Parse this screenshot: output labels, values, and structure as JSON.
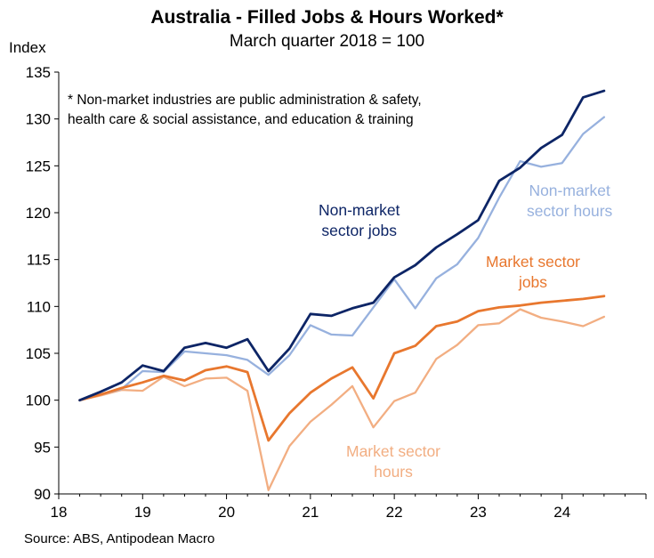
{
  "chart_data": {
    "type": "line",
    "title": "Australia - Filled Jobs & Hours Worked*",
    "subtitle": "March quarter 2018 = 100",
    "ylabel": "Index",
    "ylim": [
      90,
      135
    ],
    "yticks": [
      90,
      95,
      100,
      105,
      110,
      115,
      120,
      125,
      130,
      135
    ],
    "xlim": [
      18,
      25
    ],
    "xticks": [
      18,
      19,
      20,
      21,
      22,
      23,
      24
    ],
    "xtick_labels": [
      "18",
      "19",
      "20",
      "21",
      "22",
      "23",
      "24"
    ],
    "x": [
      18.25,
      18.5,
      18.75,
      19.0,
      19.25,
      19.5,
      19.75,
      20.0,
      20.25,
      20.5,
      20.75,
      21.0,
      21.25,
      21.5,
      21.75,
      22.0,
      22.25,
      22.5,
      22.75,
      23.0,
      23.25,
      23.5,
      23.75,
      24.0,
      24.25,
      24.5
    ],
    "series": [
      {
        "name": "Non-market sector jobs",
        "color": "#0d2566",
        "values": [
          100.0,
          100.9,
          101.9,
          103.7,
          103.1,
          105.6,
          106.1,
          105.6,
          106.5,
          103.1,
          105.5,
          109.2,
          109.0,
          109.8,
          110.4,
          113.1,
          114.4,
          116.3,
          117.7,
          119.2,
          123.4,
          124.8,
          126.9,
          128.3,
          132.3,
          133.0
        ]
      },
      {
        "name": "Non-market sector hours",
        "color": "#97b1de",
        "values": [
          100.0,
          100.6,
          101.2,
          103.1,
          103.0,
          105.2,
          105.0,
          104.8,
          104.3,
          102.7,
          104.8,
          108.0,
          107.0,
          106.9,
          109.9,
          112.9,
          109.8,
          113.0,
          114.5,
          117.3,
          121.6,
          125.5,
          124.9,
          125.3,
          128.4,
          130.2
        ]
      },
      {
        "name": "Market sector jobs",
        "color": "#e8772e",
        "values": [
          100.0,
          100.6,
          101.3,
          101.9,
          102.6,
          102.1,
          103.2,
          103.6,
          103.0,
          95.7,
          98.6,
          100.8,
          102.3,
          103.5,
          100.2,
          105.0,
          105.8,
          107.9,
          108.4,
          109.5,
          109.9,
          110.1,
          110.4,
          110.6,
          110.8,
          111.1
        ]
      },
      {
        "name": "Market sector hours",
        "color": "#f2ae82",
        "values": [
          100.0,
          100.5,
          101.1,
          101.0,
          102.5,
          101.5,
          102.3,
          102.4,
          101.0,
          90.4,
          95.1,
          97.7,
          99.5,
          101.5,
          97.1,
          99.9,
          100.8,
          104.4,
          105.9,
          108.0,
          108.2,
          109.7,
          108.8,
          108.4,
          107.9,
          108.9
        ]
      }
    ],
    "annotations": [
      "* Non-market industries are public administration & safety,",
      "health care & social assistance, and education & training"
    ],
    "series_labels": {
      "nonmarket_jobs": [
        "Non-market",
        "sector jobs"
      ],
      "nonmarket_hours": [
        "Non-market",
        "sector hours"
      ],
      "market_jobs": [
        "Market sector",
        "jobs"
      ],
      "market_hours": [
        "Market sector",
        "hours"
      ]
    },
    "source": "Source: ABS, Antipodean Macro",
    "grid": false,
    "legend": "inline labels"
  }
}
